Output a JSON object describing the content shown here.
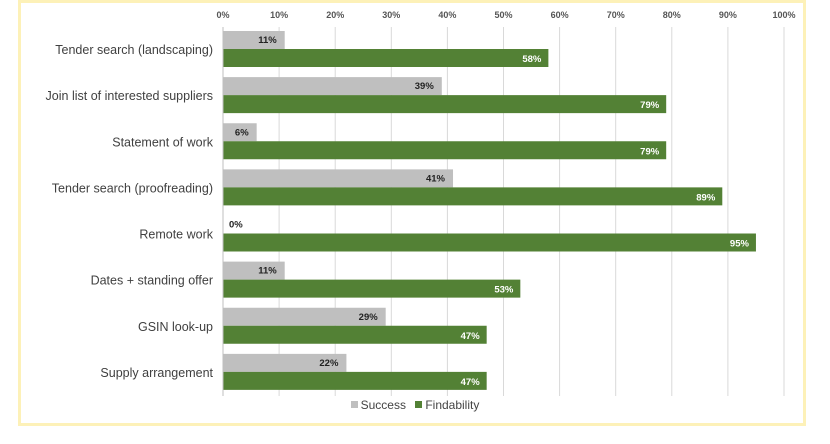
{
  "chart_data": {
    "type": "bar",
    "orientation": "horizontal",
    "categories": [
      "Tender search (landscaping)",
      "Join list of interested suppliers",
      "Statement of work",
      "Tender search (proofreading)",
      "Remote work",
      "Dates + standing offer",
      "GSIN look-up",
      "Supply arrangement"
    ],
    "series": [
      {
        "name": "Success",
        "color": "#bfbfbf",
        "values": [
          11,
          39,
          6,
          41,
          0,
          11,
          29,
          22
        ]
      },
      {
        "name": "Findability",
        "color": "#538135",
        "values": [
          58,
          79,
          79,
          89,
          95,
          53,
          47,
          47
        ]
      }
    ],
    "data_labels": {
      "Success": [
        "11%",
        "39%",
        "6%",
        "41%",
        "0%",
        "11%",
        "29%",
        "22%"
      ],
      "Findability": [
        "58%",
        "79%",
        "79%",
        "89%",
        "95%",
        "53%",
        "47%",
        "47%"
      ]
    },
    "xlim": [
      0,
      100
    ],
    "xticks": [
      0,
      10,
      20,
      30,
      40,
      50,
      60,
      70,
      80,
      90,
      100
    ],
    "xtick_labels": [
      "0%",
      "10%",
      "20%",
      "30%",
      "40%",
      "50%",
      "60%",
      "70%",
      "80%",
      "90%",
      "100%"
    ],
    "x_axis_position": "top",
    "gridlines": true,
    "legend_position": "bottom",
    "title": "",
    "xlabel": "",
    "ylabel": ""
  },
  "frame_color": "#fdf1b8"
}
